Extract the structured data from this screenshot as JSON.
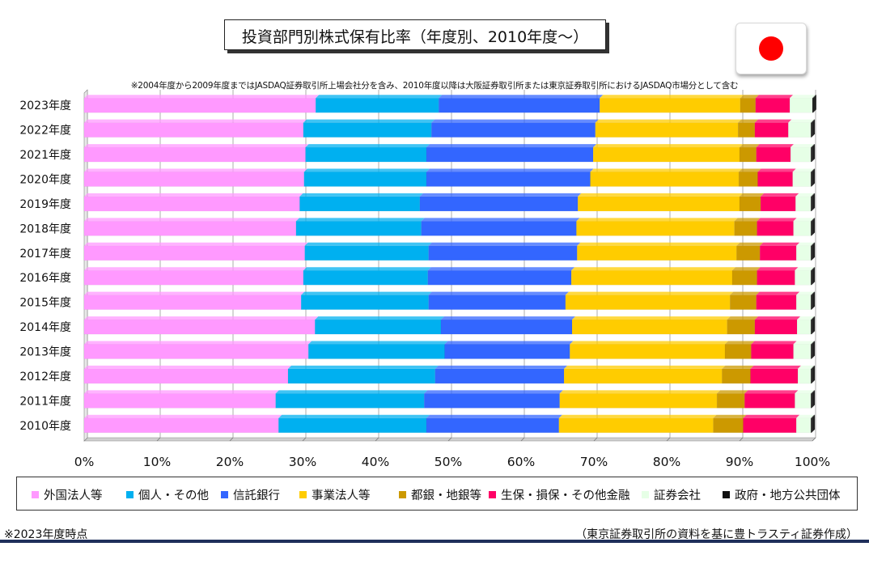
{
  "chart_data": {
    "type": "bar",
    "orientation": "horizontal",
    "stacked": true,
    "title": "投資部門別株式保有比率（年度別、2010年度～）",
    "note": "※2004年度から2009年度まではJASDAQ証券取引所上場会社分を含み、2010年度以降は大阪証券取引所または東京証券取引所におけるJASDAQ市場分として含む",
    "xlim": [
      0,
      100
    ],
    "x_ticks": [
      "0%",
      "10%",
      "20%",
      "30%",
      "40%",
      "50%",
      "60%",
      "70%",
      "80%",
      "90%",
      "100%"
    ],
    "legend_placement": "bottom",
    "categories": [
      "2023年度",
      "2022年度",
      "2021年度",
      "2020年度",
      "2019年度",
      "2018年度",
      "2017年度",
      "2016年度",
      "2015年度",
      "2014年度",
      "2013年度",
      "2012年度",
      "2011年度",
      "2010年度"
    ],
    "series": [
      {
        "name": "外国法人等",
        "color": "#ff99ff",
        "values": [
          31.8,
          30.1,
          30.4,
          30.2,
          29.6,
          29.1,
          30.3,
          30.1,
          29.8,
          31.7,
          30.8,
          28.0,
          26.3,
          26.7
        ]
      },
      {
        "name": "個人・その他",
        "color": "#00b0f0",
        "values": [
          16.9,
          17.6,
          16.6,
          16.8,
          16.5,
          17.2,
          17.0,
          17.1,
          17.5,
          17.3,
          18.7,
          20.2,
          20.4,
          20.3
        ]
      },
      {
        "name": "信託銀行",
        "color": "#3366ff",
        "values": [
          22.1,
          22.5,
          22.9,
          22.5,
          21.7,
          21.3,
          20.4,
          19.7,
          18.8,
          18.0,
          17.2,
          17.7,
          18.6,
          18.2
        ]
      },
      {
        "name": "事業法人等",
        "color": "#ffcc00",
        "values": [
          19.3,
          19.6,
          20.1,
          20.4,
          22.2,
          21.7,
          21.9,
          22.1,
          22.6,
          21.3,
          21.3,
          21.7,
          21.6,
          21.2
        ]
      },
      {
        "name": "都銀・地銀等",
        "color": "#cc9900",
        "values": [
          2.1,
          2.3,
          2.3,
          2.6,
          2.9,
          3.1,
          3.2,
          3.4,
          3.6,
          3.8,
          3.6,
          3.9,
          3.8,
          4.1
        ]
      },
      {
        "name": "生保・損保・その他金融",
        "color": "#ff0066",
        "values": [
          4.7,
          4.6,
          4.7,
          4.8,
          4.8,
          5.0,
          5.0,
          5.2,
          5.5,
          5.8,
          5.8,
          6.5,
          6.9,
          7.3
        ]
      },
      {
        "name": "証券会社",
        "color": "#e6ffe6",
        "values": [
          3.1,
          3.1,
          2.8,
          2.5,
          2.1,
          2.4,
          2.0,
          2.2,
          2.0,
          1.9,
          2.4,
          1.8,
          2.2,
          2.0
        ]
      },
      {
        "name": "政府・地方公共団体",
        "color": "#111111",
        "values": [
          0.1,
          0.1,
          0.1,
          0.1,
          0.1,
          0.1,
          0.1,
          0.1,
          0.1,
          0.1,
          0.1,
          0.1,
          0.1,
          0.1
        ]
      }
    ]
  },
  "footer": {
    "left": "※2023年度時点",
    "right": "（東京証券取引所の資料を基に豊トラスティ証券作成）"
  },
  "flag": {
    "icon": "japan-flag-icon",
    "circle_color": "#ff0000"
  }
}
